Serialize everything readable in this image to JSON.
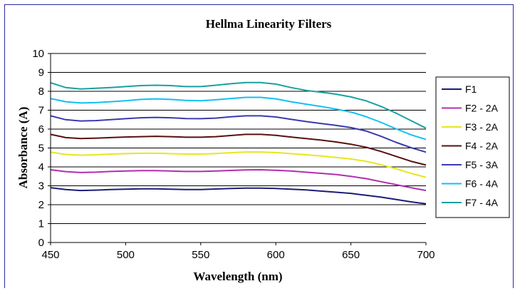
{
  "chart_data": {
    "type": "line",
    "title": "Hellma Linearity Filters",
    "xlabel": "Wavelength (nm)",
    "ylabel": "Absorbance (A)",
    "xlim": [
      450,
      700
    ],
    "ylim": [
      0,
      10
    ],
    "x_ticks": [
      "450",
      "500",
      "550",
      "600",
      "650",
      "700"
    ],
    "y_ticks": [
      "0",
      "1",
      "2",
      "3",
      "4",
      "5",
      "6",
      "7",
      "8",
      "9",
      "10"
    ],
    "grid": "horizontal",
    "legend_position": "right",
    "x": [
      450,
      460,
      470,
      480,
      490,
      500,
      510,
      520,
      530,
      540,
      550,
      560,
      570,
      580,
      590,
      600,
      610,
      620,
      630,
      640,
      650,
      660,
      670,
      680,
      690,
      700
    ],
    "series": [
      {
        "name": "F1",
        "color": "#1c1c7a",
        "values": [
          2.9,
          2.8,
          2.75,
          2.77,
          2.8,
          2.82,
          2.84,
          2.84,
          2.82,
          2.8,
          2.8,
          2.83,
          2.86,
          2.88,
          2.88,
          2.86,
          2.82,
          2.78,
          2.72,
          2.66,
          2.6,
          2.5,
          2.4,
          2.28,
          2.15,
          2.05
        ]
      },
      {
        "name": "F2 - 2A",
        "color": "#b02fb0",
        "values": [
          3.85,
          3.75,
          3.7,
          3.72,
          3.76,
          3.78,
          3.8,
          3.8,
          3.78,
          3.76,
          3.76,
          3.78,
          3.81,
          3.84,
          3.85,
          3.82,
          3.78,
          3.72,
          3.66,
          3.6,
          3.5,
          3.38,
          3.22,
          3.06,
          2.9,
          2.75
        ]
      },
      {
        "name": "F3 - 2A",
        "color": "#e6e620",
        "values": [
          4.78,
          4.66,
          4.62,
          4.64,
          4.68,
          4.7,
          4.72,
          4.72,
          4.7,
          4.68,
          4.68,
          4.71,
          4.75,
          4.79,
          4.79,
          4.76,
          4.7,
          4.64,
          4.58,
          4.5,
          4.42,
          4.3,
          4.12,
          3.9,
          3.66,
          3.45
        ]
      },
      {
        "name": "F4 - 2A",
        "color": "#5a1010",
        "values": [
          5.72,
          5.55,
          5.5,
          5.52,
          5.55,
          5.58,
          5.6,
          5.62,
          5.6,
          5.57,
          5.57,
          5.6,
          5.66,
          5.72,
          5.72,
          5.67,
          5.58,
          5.5,
          5.42,
          5.32,
          5.2,
          5.04,
          4.82,
          4.56,
          4.3,
          4.1
        ]
      },
      {
        "name": "F5 - 3A",
        "color": "#3a3ab0",
        "values": [
          6.7,
          6.5,
          6.43,
          6.45,
          6.5,
          6.55,
          6.6,
          6.62,
          6.6,
          6.56,
          6.55,
          6.58,
          6.65,
          6.7,
          6.7,
          6.64,
          6.52,
          6.4,
          6.3,
          6.2,
          6.08,
          5.9,
          5.62,
          5.3,
          5.02,
          4.78
        ]
      },
      {
        "name": "F6 - 4A",
        "color": "#12c0f0",
        "values": [
          7.62,
          7.45,
          7.38,
          7.4,
          7.45,
          7.5,
          7.57,
          7.6,
          7.57,
          7.52,
          7.5,
          7.55,
          7.62,
          7.68,
          7.68,
          7.6,
          7.45,
          7.32,
          7.2,
          7.06,
          6.9,
          6.66,
          6.36,
          6.02,
          5.7,
          5.45
        ]
      },
      {
        "name": "F7 - 4A",
        "color": "#1aa0a0",
        "values": [
          8.45,
          8.2,
          8.12,
          8.16,
          8.2,
          8.25,
          8.3,
          8.32,
          8.3,
          8.25,
          8.25,
          8.32,
          8.4,
          8.46,
          8.46,
          8.38,
          8.2,
          8.05,
          7.95,
          7.85,
          7.7,
          7.5,
          7.2,
          6.85,
          6.45,
          6.05
        ]
      }
    ]
  }
}
